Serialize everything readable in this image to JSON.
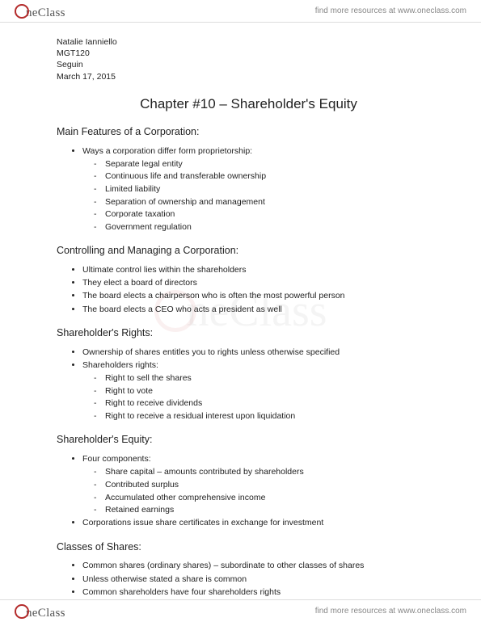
{
  "brand": {
    "logo_text": "neClass",
    "tagline": "find more resources at www.oneclass.com",
    "watermark_text": "neClass"
  },
  "meta": {
    "author": "Natalie Ianniello",
    "course": "MGT120",
    "instructor": "Seguin",
    "date": "March 17, 2015"
  },
  "title": "Chapter #10 – Shareholder's Equity",
  "sections": [
    {
      "heading": "Main Features of a Corporation:",
      "bullets": [
        {
          "text": "Ways a corporation differ form proprietorship:",
          "sub": [
            "Separate legal entity",
            "Continuous life and transferable ownership",
            "Limited liability",
            "Separation of ownership and management",
            "Corporate taxation",
            "Government regulation"
          ]
        }
      ]
    },
    {
      "heading": "Controlling and Managing a Corporation:",
      "bullets": [
        {
          "text": "Ultimate control lies within the shareholders"
        },
        {
          "text": "They elect a board of directors"
        },
        {
          "text": "The board elects a chairperson who is often the most powerful person"
        },
        {
          "text": "The board elects a CEO who acts a president as well"
        }
      ]
    },
    {
      "heading": "Shareholder's Rights:",
      "bullets": [
        {
          "text": "Ownership of shares entitles you to rights unless otherwise specified"
        },
        {
          "text": "Shareholders rights:",
          "sub": [
            "Right to sell the shares",
            "Right to vote",
            "Right to receive dividends",
            "Right to receive a residual interest upon liquidation"
          ]
        }
      ]
    },
    {
      "heading": "Shareholder's Equity:",
      "bullets": [
        {
          "text": "Four components:",
          "sub": [
            "Share capital – amounts contributed by shareholders",
            "Contributed surplus",
            "Accumulated other comprehensive income",
            "Retained earnings"
          ]
        },
        {
          "text": "Corporations issue share certificates in exchange for investment"
        }
      ]
    },
    {
      "heading": "Classes of Shares:",
      "bullets": [
        {
          "text": "Common shares (ordinary shares) – subordinate to other classes of shares"
        },
        {
          "text": "Unless otherwise stated a share is common"
        },
        {
          "text": "Common shareholders have four shareholders rights"
        }
      ]
    }
  ],
  "colors": {
    "text": "#222222",
    "light_text": "#888888",
    "brand_red": "#b42c2c",
    "border": "#dddddd",
    "background": "#ffffff"
  }
}
